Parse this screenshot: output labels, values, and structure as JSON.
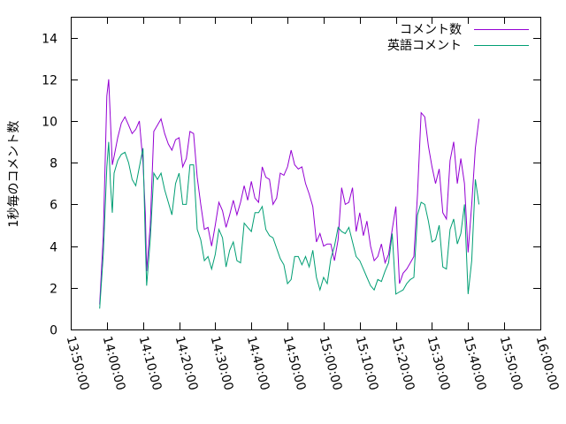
{
  "chart_data": {
    "type": "line",
    "title": "",
    "xlabel": "",
    "ylabel": "1秒毎のコメント数",
    "ylim": [
      0,
      15
    ],
    "yticks": [
      0,
      2,
      4,
      6,
      8,
      10,
      12,
      14
    ],
    "xlim": [
      "13:50:00",
      "16:00:00"
    ],
    "xticks": [
      "13:50:00",
      "14:00:00",
      "14:10:00",
      "14:20:00",
      "14:30:00",
      "14:40:00",
      "14:50:00",
      "15:00:00",
      "15:10:00",
      "15:20:00",
      "15:30:00",
      "15:40:00",
      "15:50:00",
      "16:00:00"
    ],
    "grid": false,
    "legend_position": "top-right",
    "series": [
      {
        "name": "コメント数",
        "color": "#9400d3",
        "points": [
          [
            "13:58:00",
            1.2
          ],
          [
            "13:59:00",
            4.5
          ],
          [
            "14:00:00",
            11.2
          ],
          [
            "14:00:30",
            12.0
          ],
          [
            "14:01:00",
            10.0
          ],
          [
            "14:01:30",
            7.9
          ],
          [
            "14:02:00",
            8.3
          ],
          [
            "14:03:00",
            9.2
          ],
          [
            "14:04:00",
            9.9
          ],
          [
            "14:05:00",
            10.2
          ],
          [
            "14:06:00",
            9.8
          ],
          [
            "14:07:00",
            9.4
          ],
          [
            "14:08:00",
            9.6
          ],
          [
            "14:09:00",
            10.0
          ],
          [
            "14:10:00",
            8.0
          ],
          [
            "14:10:40",
            5.5
          ],
          [
            "14:11:00",
            2.8
          ],
          [
            "14:12:00",
            5.0
          ],
          [
            "14:13:00",
            9.5
          ],
          [
            "14:14:00",
            9.8
          ],
          [
            "14:15:00",
            10.1
          ],
          [
            "14:16:00",
            9.4
          ],
          [
            "14:17:00",
            8.9
          ],
          [
            "14:18:00",
            8.6
          ],
          [
            "14:19:00",
            9.1
          ],
          [
            "14:20:00",
            9.2
          ],
          [
            "14:21:00",
            7.8
          ],
          [
            "14:22:00",
            8.2
          ],
          [
            "14:23:00",
            9.5
          ],
          [
            "14:24:00",
            9.4
          ],
          [
            "14:25:00",
            7.3
          ],
          [
            "14:26:00",
            6.0
          ],
          [
            "14:27:00",
            4.8
          ],
          [
            "14:28:00",
            4.9
          ],
          [
            "14:29:00",
            4.0
          ],
          [
            "14:30:00",
            5.0
          ],
          [
            "14:31:00",
            6.1
          ],
          [
            "14:32:00",
            5.7
          ],
          [
            "14:33:00",
            4.9
          ],
          [
            "14:34:00",
            5.5
          ],
          [
            "14:35:00",
            6.2
          ],
          [
            "14:36:00",
            5.5
          ],
          [
            "14:37:00",
            6.1
          ],
          [
            "14:38:00",
            6.9
          ],
          [
            "14:39:00",
            6.2
          ],
          [
            "14:40:00",
            7.1
          ],
          [
            "14:41:00",
            6.3
          ],
          [
            "14:42:00",
            6.1
          ],
          [
            "14:43:00",
            7.8
          ],
          [
            "14:44:00",
            7.3
          ],
          [
            "14:45:00",
            7.2
          ],
          [
            "14:46:00",
            6.0
          ],
          [
            "14:47:00",
            6.3
          ],
          [
            "14:48:00",
            7.5
          ],
          [
            "14:49:00",
            7.4
          ],
          [
            "14:50:00",
            7.8
          ],
          [
            "14:51:00",
            8.6
          ],
          [
            "14:52:00",
            7.9
          ],
          [
            "14:53:00",
            7.7
          ],
          [
            "14:54:00",
            7.8
          ],
          [
            "14:55:00",
            7.0
          ],
          [
            "14:56:00",
            6.5
          ],
          [
            "14:57:00",
            5.9
          ],
          [
            "14:58:00",
            4.2
          ],
          [
            "14:59:00",
            4.6
          ],
          [
            "15:00:00",
            4.0
          ],
          [
            "15:01:00",
            4.1
          ],
          [
            "15:02:00",
            4.1
          ],
          [
            "15:03:00",
            3.3
          ],
          [
            "15:04:00",
            4.3
          ],
          [
            "15:05:00",
            6.8
          ],
          [
            "15:06:00",
            6.0
          ],
          [
            "15:07:00",
            6.1
          ],
          [
            "15:08:00",
            6.8
          ],
          [
            "15:09:00",
            4.7
          ],
          [
            "15:10:00",
            5.6
          ],
          [
            "15:11:00",
            4.5
          ],
          [
            "15:12:00",
            5.2
          ],
          [
            "15:13:00",
            4.0
          ],
          [
            "15:14:00",
            3.3
          ],
          [
            "15:15:00",
            3.5
          ],
          [
            "15:16:00",
            4.1
          ],
          [
            "15:17:00",
            3.2
          ],
          [
            "15:18:00",
            3.6
          ],
          [
            "15:19:00",
            4.8
          ],
          [
            "15:20:00",
            5.9
          ],
          [
            "15:21:00",
            2.2
          ],
          [
            "15:22:00",
            2.7
          ],
          [
            "15:23:00",
            2.9
          ],
          [
            "15:24:00",
            3.2
          ],
          [
            "15:25:00",
            3.5
          ],
          [
            "15:26:00",
            6.5
          ],
          [
            "15:27:00",
            10.4
          ],
          [
            "15:28:00",
            10.2
          ],
          [
            "15:29:00",
            8.8
          ],
          [
            "15:30:00",
            7.8
          ],
          [
            "15:31:00",
            7.0
          ],
          [
            "15:32:00",
            7.7
          ],
          [
            "15:33:00",
            5.6
          ],
          [
            "15:34:00",
            5.3
          ],
          [
            "15:35:00",
            8.1
          ],
          [
            "15:36:00",
            9.0
          ],
          [
            "15:37:00",
            7.0
          ],
          [
            "15:38:00",
            8.2
          ],
          [
            "15:39:00",
            7.0
          ],
          [
            "15:40:00",
            3.7
          ],
          [
            "15:41:00",
            6.0
          ],
          [
            "15:42:00",
            8.7
          ],
          [
            "15:43:00",
            10.1
          ]
        ]
      },
      {
        "name": "英語コメント",
        "color": "#009e73",
        "points": [
          [
            "13:58:00",
            1.0
          ],
          [
            "13:59:00",
            3.6
          ],
          [
            "14:00:00",
            7.8
          ],
          [
            "14:00:30",
            9.0
          ],
          [
            "14:01:00",
            7.0
          ],
          [
            "14:01:30",
            5.6
          ],
          [
            "14:02:00",
            7.5
          ],
          [
            "14:03:00",
            8.1
          ],
          [
            "14:04:00",
            8.4
          ],
          [
            "14:05:00",
            8.5
          ],
          [
            "14:06:00",
            8.0
          ],
          [
            "14:07:00",
            7.2
          ],
          [
            "14:08:00",
            6.9
          ],
          [
            "14:09:00",
            7.8
          ],
          [
            "14:10:00",
            8.7
          ],
          [
            "14:10:40",
            4.1
          ],
          [
            "14:11:00",
            2.1
          ],
          [
            "14:12:00",
            4.3
          ],
          [
            "14:13:00",
            7.5
          ],
          [
            "14:14:00",
            7.2
          ],
          [
            "14:15:00",
            7.5
          ],
          [
            "14:16:00",
            6.7
          ],
          [
            "14:17:00",
            6.1
          ],
          [
            "14:18:00",
            5.5
          ],
          [
            "14:19:00",
            7.0
          ],
          [
            "14:20:00",
            7.5
          ],
          [
            "14:21:00",
            6.0
          ],
          [
            "14:22:00",
            6.0
          ],
          [
            "14:23:00",
            7.9
          ],
          [
            "14:24:00",
            7.9
          ],
          [
            "14:25:00",
            4.8
          ],
          [
            "14:26:00",
            4.3
          ],
          [
            "14:27:00",
            3.3
          ],
          [
            "14:28:00",
            3.5
          ],
          [
            "14:29:00",
            2.9
          ],
          [
            "14:30:00",
            3.6
          ],
          [
            "14:31:00",
            4.8
          ],
          [
            "14:32:00",
            4.4
          ],
          [
            "14:33:00",
            3.0
          ],
          [
            "14:34:00",
            3.8
          ],
          [
            "14:35:00",
            4.2
          ],
          [
            "14:36:00",
            3.3
          ],
          [
            "14:37:00",
            3.2
          ],
          [
            "14:38:00",
            5.1
          ],
          [
            "14:39:00",
            4.9
          ],
          [
            "14:40:00",
            4.7
          ],
          [
            "14:41:00",
            5.6
          ],
          [
            "14:42:00",
            5.6
          ],
          [
            "14:43:00",
            5.9
          ],
          [
            "14:44:00",
            4.8
          ],
          [
            "14:45:00",
            4.5
          ],
          [
            "14:46:00",
            4.4
          ],
          [
            "14:47:00",
            3.9
          ],
          [
            "14:48:00",
            3.4
          ],
          [
            "14:49:00",
            3.1
          ],
          [
            "14:50:00",
            2.2
          ],
          [
            "14:51:00",
            2.4
          ],
          [
            "14:52:00",
            3.5
          ],
          [
            "14:53:00",
            3.5
          ],
          [
            "14:54:00",
            3.1
          ],
          [
            "14:55:00",
            3.5
          ],
          [
            "14:56:00",
            3.0
          ],
          [
            "14:57:00",
            3.8
          ],
          [
            "14:58:00",
            2.5
          ],
          [
            "14:59:00",
            1.9
          ],
          [
            "15:00:00",
            2.5
          ],
          [
            "15:01:00",
            2.2
          ],
          [
            "15:02:00",
            3.4
          ],
          [
            "15:03:00",
            4.0
          ],
          [
            "15:04:00",
            4.9
          ],
          [
            "15:05:00",
            4.7
          ],
          [
            "15:06:00",
            4.6
          ],
          [
            "15:07:00",
            4.9
          ],
          [
            "15:08:00",
            4.2
          ],
          [
            "15:09:00",
            3.5
          ],
          [
            "15:10:00",
            3.3
          ],
          [
            "15:11:00",
            2.9
          ],
          [
            "15:12:00",
            2.5
          ],
          [
            "15:13:00",
            2.1
          ],
          [
            "15:14:00",
            1.9
          ],
          [
            "15:15:00",
            2.4
          ],
          [
            "15:16:00",
            2.3
          ],
          [
            "15:17:00",
            2.8
          ],
          [
            "15:18:00",
            3.2
          ],
          [
            "15:19:00",
            4.6
          ],
          [
            "15:20:00",
            1.7
          ],
          [
            "15:21:00",
            1.8
          ],
          [
            "15:22:00",
            1.9
          ],
          [
            "15:23:00",
            2.2
          ],
          [
            "15:24:00",
            2.4
          ],
          [
            "15:25:00",
            2.5
          ],
          [
            "15:26:00",
            5.5
          ],
          [
            "15:27:00",
            6.1
          ],
          [
            "15:28:00",
            6.0
          ],
          [
            "15:29:00",
            5.2
          ],
          [
            "15:30:00",
            4.2
          ],
          [
            "15:31:00",
            4.3
          ],
          [
            "15:32:00",
            5.0
          ],
          [
            "15:33:00",
            3.0
          ],
          [
            "15:34:00",
            2.9
          ],
          [
            "15:35:00",
            4.8
          ],
          [
            "15:36:00",
            5.3
          ],
          [
            "15:37:00",
            4.1
          ],
          [
            "15:38:00",
            4.6
          ],
          [
            "15:39:00",
            6.0
          ],
          [
            "15:40:00",
            1.7
          ],
          [
            "15:41:00",
            3.3
          ],
          [
            "15:42:00",
            7.2
          ],
          [
            "15:43:00",
            6.0
          ]
        ]
      }
    ]
  }
}
